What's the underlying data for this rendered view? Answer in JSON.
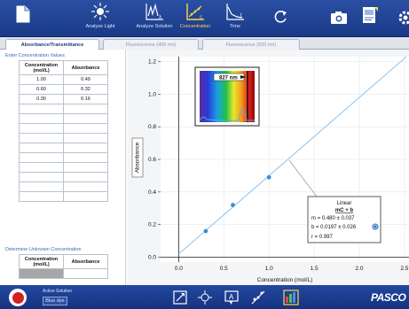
{
  "toolbar": {
    "items": [
      {
        "label": "",
        "icon": "document-icon"
      },
      {
        "label": "Analyze Light",
        "icon": "light-icon"
      },
      {
        "label": "Analyze Solution",
        "icon": "analyze-solution-icon"
      },
      {
        "label": "Concentration",
        "icon": "concentration-icon",
        "active": true
      },
      {
        "label": "Time",
        "icon": "time-icon"
      },
      {
        "label": "",
        "icon": "refresh-icon"
      },
      {
        "label": "",
        "icon": "camera-icon"
      },
      {
        "label": "",
        "icon": "journal-icon"
      },
      {
        "label": "",
        "icon": "gear-icon"
      }
    ]
  },
  "tabs": [
    {
      "label": "Absorbance/Transmittance",
      "active": true
    },
    {
      "label": "Fluorescence (405 nm)",
      "active": false
    },
    {
      "label": "Fluorescence (500 nm)",
      "active": false
    }
  ],
  "left_panel": {
    "concentration_section": {
      "title": "Enter Concentration Values",
      "col1": "Concentration\n(mol/L)",
      "col2": "Absorbance",
      "rows": [
        {
          "c": "1.00",
          "a": "0.49"
        },
        {
          "c": "0.60",
          "a": "0.32"
        },
        {
          "c": "0.30",
          "a": "0.16"
        }
      ]
    },
    "unknown_section": {
      "title": "Determine Unknown Concentration",
      "col1": "Concentration\n(mol/L)",
      "col2": "Absorbance"
    }
  },
  "chart_data": {
    "type": "scatter",
    "xlabel": "Concentration (mol/L)",
    "ylabel": "Absorbance",
    "xlim": [
      -0.2,
      2.55
    ],
    "ylim": [
      -0.03,
      1.23
    ],
    "x_ticks": [
      "0.0",
      "0.5",
      "1.0",
      "1.5",
      "2.0",
      "2.5"
    ],
    "y_ticks": [
      "0.0",
      "0.2",
      "0.4",
      "0.6",
      "0.8",
      "1.0",
      "1.2"
    ],
    "points": [
      {
        "x": 0.3,
        "y": 0.16
      },
      {
        "x": 0.6,
        "y": 0.32
      },
      {
        "x": 1.0,
        "y": 0.49
      }
    ],
    "fit": {
      "slope": 0.48,
      "intercept": 0.0197
    },
    "fit_box": {
      "title": "Linear",
      "formula": "mC + b",
      "m_line": "m = 0.480  ± 0.037",
      "b_line": "b = 0.0197 ± 0.026",
      "r_line": "r = 0.997"
    },
    "inset": {
      "wavelength_label": "827 nm"
    },
    "colors": {
      "points": "#3a8fd6",
      "fit_line": "#8cc4ee"
    }
  },
  "bottom_bar": {
    "record_label": "",
    "active_solution_label": "Active Solution",
    "active_solution_value": "Blue dye",
    "brand": "PASCO"
  }
}
